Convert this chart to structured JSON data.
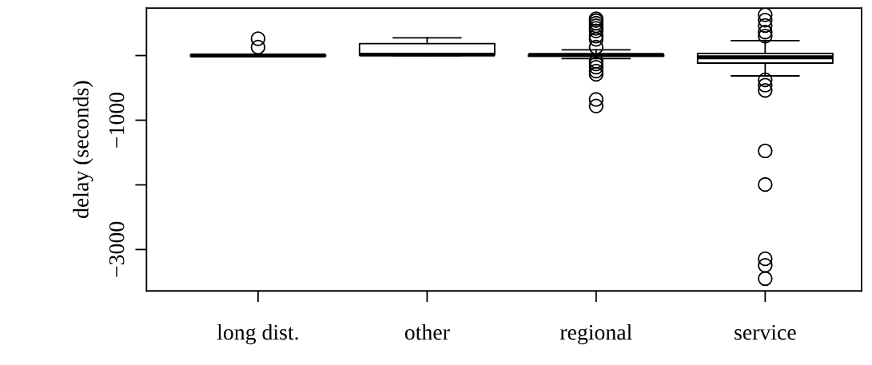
{
  "chart_data": {
    "type": "box",
    "ylabel": "delay (seconds)",
    "categories": [
      "long dist.",
      "other",
      "regional",
      "service"
    ],
    "boxes": [
      {
        "low": -10,
        "q1": -5,
        "median": 0,
        "q3": 5,
        "high": 10,
        "outliers": [
          260,
          130
        ]
      },
      {
        "low": 0,
        "q1": 10,
        "median": 15,
        "q3": 185,
        "high": 275
      },
      {
        "low": -47,
        "q1": -10,
        "median": 10,
        "q3": 15,
        "high": 89,
        "outliers": [
          570,
          540,
          500,
          460,
          420,
          380,
          300,
          250,
          130,
          -90,
          -130,
          -180,
          -240,
          -290,
          -680,
          -780
        ]
      },
      {
        "low": -314,
        "q1": -117,
        "median": -27,
        "q3": 34,
        "high": 231,
        "outliers": [
          630,
          547,
          465,
          363,
          301,
          -375,
          -458,
          -539,
          -1474,
          -1995,
          -3143,
          -3245,
          -3450
        ]
      }
    ],
    "ylim": [
      -3640,
      735
    ],
    "yticks": [
      {
        "value": 0,
        "label": null
      },
      -1000,
      {
        "value": -2000,
        "label": null
      },
      -3000
    ],
    "grid": false,
    "legend": false,
    "marker": "circle"
  }
}
